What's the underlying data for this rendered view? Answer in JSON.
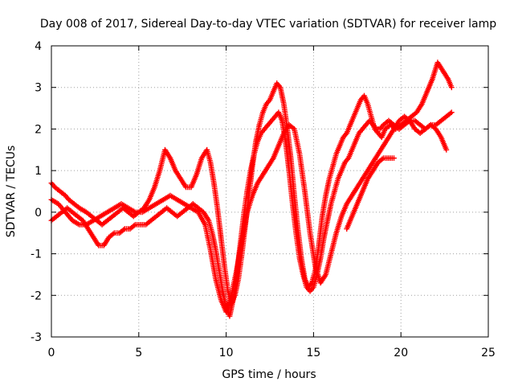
{
  "chart_data": {
    "type": "scatter",
    "title": "Day 008 of 2017, Sidereal Day-to-day VTEC variation (SDTVAR) for receiver lamp",
    "xlabel": "GPS time / hours",
    "ylabel": "SDTVAR / TECUs",
    "xlim": [
      0,
      25
    ],
    "ylim": [
      -3,
      4
    ],
    "xticks": [
      "0",
      "5",
      "10",
      "15",
      "20",
      "25"
    ],
    "yticks": [
      "-3",
      "-2",
      "-1",
      "0",
      "1",
      "2",
      "3",
      "4"
    ],
    "grid": true,
    "marker": "plus",
    "color": "#ff0000",
    "series": [
      {
        "x": [
          0.0,
          0.2,
          0.5,
          0.8,
          1.0,
          1.3,
          1.6,
          2.0,
          2.3,
          2.6,
          2.9,
          3.2,
          3.5,
          3.8,
          4.1,
          4.4,
          4.7,
          5.0,
          5.3,
          5.6,
          5.9,
          6.2,
          6.5,
          6.8,
          7.1,
          7.4,
          7.7,
          8.0,
          8.3,
          8.6,
          8.9,
          9.1,
          9.3,
          9.5,
          9.7,
          9.9,
          10.1,
          10.3,
          10.5,
          10.7,
          10.9,
          11.1,
          11.3,
          11.5,
          11.7,
          11.9,
          12.1,
          12.3,
          12.5,
          12.7,
          12.9,
          13.1,
          13.3,
          13.5,
          13.7,
          13.9,
          14.1,
          14.3,
          14.5,
          14.7,
          14.9,
          15.1,
          15.3,
          15.5,
          15.7,
          15.9,
          16.1,
          16.3,
          16.5,
          16.7,
          16.9,
          17.1,
          17.3,
          17.5,
          17.7,
          17.9,
          18.1,
          18.3,
          18.5,
          18.7,
          18.9,
          19.1,
          19.4,
          19.7,
          20.0,
          20.3,
          20.6,
          20.9,
          21.2,
          21.5,
          21.8,
          22.1,
          22.4,
          22.7,
          22.9
        ],
        "y": [
          0.7,
          0.6,
          0.5,
          0.4,
          0.3,
          0.2,
          0.1,
          0.0,
          -0.1,
          -0.2,
          -0.3,
          -0.2,
          -0.1,
          0.0,
          0.1,
          0.0,
          -0.1,
          0.0,
          0.1,
          0.3,
          0.6,
          1.0,
          1.5,
          1.3,
          1.0,
          0.8,
          0.6,
          0.6,
          0.9,
          1.3,
          1.5,
          1.2,
          0.7,
          0.1,
          -0.6,
          -1.3,
          -1.9,
          -2.2,
          -2.0,
          -1.6,
          -1.0,
          -0.3,
          0.4,
          1.1,
          1.7,
          2.1,
          2.4,
          2.6,
          2.7,
          2.9,
          3.1,
          3.0,
          2.6,
          2.0,
          1.3,
          0.4,
          -0.4,
          -1.1,
          -1.6,
          -1.8,
          -1.7,
          -1.4,
          -0.8,
          -0.1,
          0.4,
          0.8,
          1.1,
          1.4,
          1.6,
          1.8,
          1.9,
          2.1,
          2.3,
          2.5,
          2.7,
          2.8,
          2.6,
          2.3,
          2.0,
          1.9,
          1.8,
          2.0,
          2.1,
          2.0,
          2.1,
          2.2,
          2.3,
          2.4,
          2.6,
          2.9,
          3.2,
          3.6,
          3.4,
          3.2,
          3.0
        ]
      },
      {
        "x": [
          0.0,
          0.3,
          0.6,
          0.9,
          1.2,
          1.5,
          1.8,
          2.1,
          2.4,
          2.7,
          3.0,
          3.3,
          3.6,
          3.9,
          4.2,
          4.5,
          4.8,
          5.1,
          5.4,
          5.7,
          6.0,
          6.3,
          6.6,
          6.9,
          7.2,
          7.5,
          7.8,
          8.1,
          8.4,
          8.7,
          9.0,
          9.2,
          9.4,
          9.6,
          9.8,
          10.0,
          10.2,
          10.4,
          10.6,
          10.8,
          11.0,
          11.2,
          11.4,
          11.6,
          11.8,
          12.0,
          12.2,
          12.4,
          12.6,
          12.8,
          13.0,
          13.2,
          13.4,
          13.6,
          13.8,
          14.0,
          14.2,
          14.4,
          14.6,
          14.8,
          15.0,
          15.2,
          15.4,
          15.6,
          15.8,
          16.0,
          16.2,
          16.4,
          16.6,
          16.8,
          17.0,
          17.2,
          17.4,
          17.6,
          17.8,
          18.0,
          18.2,
          18.4,
          18.6,
          18.8,
          19.0,
          19.3,
          19.6,
          19.9,
          20.2,
          20.5,
          20.8,
          21.1,
          21.4,
          21.7,
          22.0,
          22.3,
          22.6,
          22.9
        ],
        "y": [
          -0.2,
          -0.1,
          0.0,
          0.1,
          0.0,
          -0.1,
          -0.2,
          -0.4,
          -0.6,
          -0.8,
          -0.8,
          -0.6,
          -0.5,
          -0.5,
          -0.4,
          -0.4,
          -0.3,
          -0.3,
          -0.3,
          -0.2,
          -0.1,
          0.0,
          0.1,
          0.0,
          -0.1,
          0.0,
          0.1,
          0.2,
          0.1,
          0.0,
          -0.2,
          -0.5,
          -0.9,
          -1.4,
          -1.9,
          -2.3,
          -2.5,
          -2.1,
          -1.5,
          -0.8,
          -0.1,
          0.5,
          1.0,
          1.4,
          1.7,
          1.9,
          2.0,
          2.1,
          2.2,
          2.3,
          2.4,
          2.2,
          1.7,
          1.0,
          0.2,
          -0.5,
          -1.1,
          -1.5,
          -1.8,
          -1.9,
          -1.8,
          -1.5,
          -1.1,
          -0.6,
          -0.2,
          0.2,
          0.5,
          0.8,
          1.0,
          1.2,
          1.3,
          1.5,
          1.7,
          1.9,
          2.0,
          2.1,
          2.2,
          2.1,
          2.0,
          2.0,
          2.1,
          2.2,
          2.1,
          2.0,
          2.1,
          2.2,
          2.2,
          2.1,
          2.0,
          2.1,
          2.1,
          2.2,
          2.3,
          2.4
        ]
      },
      {
        "x": [
          0.0,
          0.4,
          0.8,
          1.2,
          1.6,
          2.0,
          2.4,
          2.8,
          3.2,
          3.6,
          4.0,
          4.4,
          4.8,
          5.2,
          5.6,
          6.0,
          6.4,
          6.8,
          7.2,
          7.6,
          8.0,
          8.4,
          8.8,
          9.1,
          9.4,
          9.7,
          10.0,
          10.3,
          10.6,
          10.9,
          11.2,
          11.5,
          11.8,
          12.1,
          12.4,
          12.7,
          13.0,
          13.3,
          13.6,
          13.9,
          14.2,
          14.5,
          14.8,
          15.1,
          15.4,
          15.7,
          16.0,
          16.3,
          16.6,
          16.9,
          17.2,
          17.5,
          17.8,
          18.1,
          18.4,
          18.7,
          19.0,
          19.3,
          19.6,
          19.9,
          20.2,
          20.5,
          20.8,
          21.1,
          21.4,
          21.7,
          22.0,
          22.3,
          22.6
        ],
        "y": [
          0.3,
          0.2,
          0.0,
          -0.2,
          -0.3,
          -0.3,
          -0.2,
          -0.1,
          0.0,
          0.1,
          0.2,
          0.1,
          0.0,
          0.0,
          0.1,
          0.2,
          0.3,
          0.4,
          0.3,
          0.2,
          0.1,
          0.0,
          -0.3,
          -0.9,
          -1.6,
          -2.1,
          -2.4,
          -2.0,
          -1.4,
          -0.7,
          0.0,
          0.4,
          0.7,
          0.9,
          1.1,
          1.3,
          1.6,
          1.9,
          2.1,
          2.0,
          1.4,
          0.5,
          -0.5,
          -1.3,
          -1.7,
          -1.5,
          -1.0,
          -0.5,
          -0.1,
          0.2,
          0.4,
          0.6,
          0.8,
          1.0,
          1.2,
          1.4,
          1.6,
          1.8,
          2.0,
          2.2,
          2.3,
          2.2,
          2.0,
          1.9,
          2.0,
          2.1,
          2.0,
          1.8,
          1.5
        ]
      },
      {
        "x": [
          16.9,
          17.2,
          17.5,
          17.8,
          18.1,
          18.4,
          18.7,
          19.0,
          19.3,
          19.6
        ],
        "y": [
          -0.4,
          -0.1,
          0.2,
          0.5,
          0.8,
          1.0,
          1.2,
          1.3,
          1.3,
          1.3
        ]
      }
    ]
  }
}
